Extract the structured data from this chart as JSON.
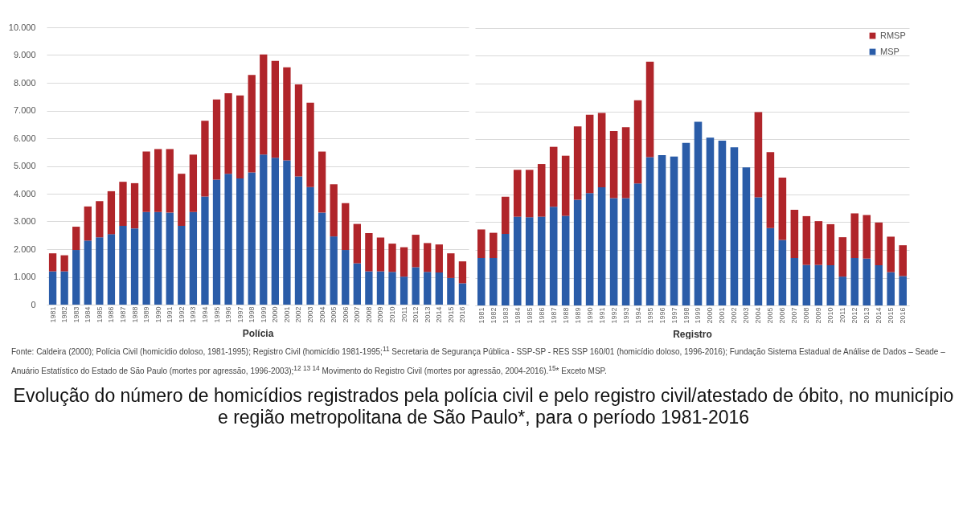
{
  "chart_data": [
    {
      "type": "bar",
      "stacked": true,
      "title": "Evolução do número de homicídios registrados pela polícia civil e pelo registro civil/atestado de óbito, no município e região metropolitana de São Paulo*, para o período 1981-2016",
      "xlabel": "Polícia",
      "annotations": [
        "Fonte: Caldeira (2000); Polícia Civil (homicídio doloso, 1981-1995); Registro Civil (homicídio 1981-1995;$^{11}$ Secretaria de Segurança Pública - SSP-SP - RES SSP 160/01 (homicídio doloso, 1996-2016); Fundação Sistema Estadual de Análise de Dados – Seade – Anuário Estatístico do Estado de São Paulo (mortes por agressão, 1996-2003);$^{12 13 14}$ Movimento do Registro Civil (mortes por agressão, 2004-2016).$^{15}$* Exceto MSP."
      ],
      "categories": [
        "1981",
        "1982",
        "1983",
        "1984",
        "1985",
        "1986",
        "1987",
        "1988",
        "1989",
        "1990",
        "1991",
        "1992",
        "1993",
        "1994",
        "1995",
        "1996",
        "1997",
        "1998",
        "1999",
        "2000",
        "2001",
        "2002",
        "2003",
        "2004",
        "2005",
        "2006",
        "2007",
        "2008",
        "2009",
        "2010",
        "2011",
        "2012",
        "2013",
        "2014",
        "2015",
        "2016"
      ],
      "series": [
        {
          "color": "#2a5ca8",
          "values": [
            1200,
            1200,
            1970,
            2310,
            2430,
            2540,
            2840,
            2750,
            3340,
            3340,
            3320,
            2840,
            3340,
            3900,
            4510,
            4720,
            4550,
            4770,
            5410,
            5300,
            5200,
            4620,
            4240,
            3320,
            2460,
            1970,
            1490,
            1200,
            1200,
            1180,
            1010,
            1350,
            1180,
            1160,
            960,
            770
          ]
        },
        {
          "color": "#b0252a",
          "values": [
            650,
            580,
            840,
            1230,
            1300,
            1550,
            1590,
            1630,
            2180,
            2270,
            2290,
            1880,
            2070,
            2730,
            2890,
            2900,
            2990,
            3510,
            3610,
            3490,
            3360,
            3320,
            3040,
            2200,
            1880,
            1690,
            1420,
            1380,
            1220,
            1020,
            1060,
            1170,
            1040,
            1010,
            890,
            790
          ]
        }
      ],
      "ylim": [
        0,
        10000
      ],
      "yticks": [
        0,
        {
          "value": 1000,
          "label": "1.000"
        },
        {
          "value": 2000,
          "label": "2.000"
        },
        {
          "value": 3000,
          "label": "3.000"
        },
        {
          "value": 4000,
          "label": "4.000"
        },
        {
          "value": 5000,
          "label": "5.000"
        },
        {
          "value": 6000,
          "label": "6.000"
        },
        {
          "value": 7000,
          "label": "7.000"
        },
        {
          "value": 8000,
          "label": "8.000"
        },
        {
          "value": 9000,
          "label": "9.000"
        },
        {
          "value": 10000,
          "label": "10.000"
        }
      ],
      "grid": "y",
      "legend": false
    },
    {
      "type": "bar",
      "stacked": true,
      "xlabel": "Registro",
      "categories": [
        "1981",
        "1982",
        "1983",
        "1984",
        "1985",
        "1986",
        "1987",
        "1988",
        "1989",
        "1990",
        "1991",
        "1992",
        "1993",
        "1994",
        "1995",
        "1996",
        "1997",
        "1998",
        "1999",
        "2000",
        "2001",
        "2002",
        "2003",
        "2004",
        "2005",
        "2006",
        "2007",
        "2008",
        "2009",
        "2010",
        "2011",
        "2012",
        "2013",
        "2014",
        "2015",
        "2016"
      ],
      "series": [
        {
          "name": "MSP",
          "color": "#2a5ca8",
          "values": [
            1710,
            1710,
            2580,
            3200,
            3180,
            3200,
            3560,
            3230,
            3810,
            4050,
            4260,
            3870,
            3870,
            4400,
            5350,
            5420,
            5370,
            5860,
            6620,
            6050,
            5940,
            5700,
            4980,
            3900,
            2790,
            2360,
            1710,
            1460,
            1460,
            1450,
            1040,
            1710,
            1690,
            1450,
            1200,
            1060
          ]
        },
        {
          "name": "RMSP",
          "color": "#b0252a",
          "values": [
            1030,
            910,
            1340,
            1690,
            1710,
            1900,
            2160,
            2170,
            2650,
            2830,
            2680,
            2420,
            2560,
            3000,
            3440,
            null,
            null,
            null,
            null,
            null,
            null,
            null,
            null,
            3070,
            2740,
            2250,
            1740,
            1760,
            1580,
            1480,
            1420,
            1610,
            1570,
            1540,
            1280,
            1110
          ]
        }
      ],
      "ylim": [
        0,
        10000
      ],
      "yticks": [
        0,
        1000,
        2000,
        3000,
        4000,
        5000,
        6000,
        7000,
        8000,
        9000,
        10000
      ],
      "grid": "y",
      "legend": "top right",
      "tick_labels": "x"
    }
  ]
}
